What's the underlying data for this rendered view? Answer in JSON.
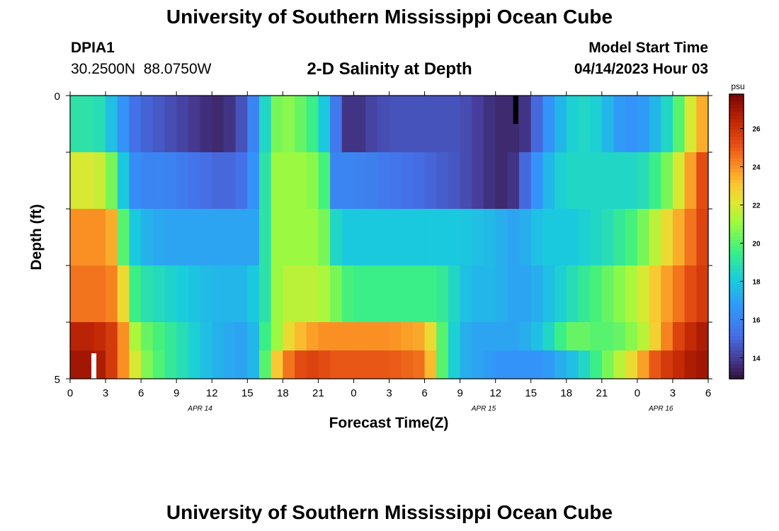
{
  "header": {
    "title": "University of Southern Mississippi Ocean Cube",
    "station_id": "DPIA1",
    "coords": "30.2500N  88.0750W",
    "model_start_label": "Model Start Time",
    "model_start_value": "04/14/2023 Hour 03"
  },
  "footer": {
    "title": "University of Southern Mississippi Ocean Cube"
  },
  "chart_data": {
    "type": "heatmap",
    "title": "2-D Salinity at Depth",
    "xlabel": "Forecast Time(Z)",
    "ylabel": "Depth (ft)",
    "colorbar_unit": "psu",
    "colorbar_ticks": [
      14,
      16,
      18,
      20,
      22,
      24,
      26
    ],
    "zlim": [
      12.9,
      27.8
    ],
    "x_tick_labels": [
      "0",
      "3",
      "6",
      "9",
      "12",
      "15",
      "18",
      "21",
      "0",
      "3",
      "6",
      "9",
      "12",
      "15",
      "18",
      "21",
      "0",
      "3",
      "6"
    ],
    "date_labels": [
      {
        "text": "APR 14",
        "x_hours": 11
      },
      {
        "text": "APR 15",
        "x_hours": 35
      },
      {
        "text": "APR 16",
        "x_hours": 50
      }
    ],
    "y_tick_labels": [
      "0",
      "5"
    ],
    "ylim": [
      0,
      5
    ],
    "x_range_hours": [
      0,
      54
    ],
    "rows": [
      {
        "depth_ft": 0.5,
        "times": [
          0,
          2,
          3,
          4,
          4.5,
          5,
          6,
          8,
          10,
          12,
          13,
          14,
          15,
          15.5,
          16,
          16.5,
          17,
          17.5,
          18,
          19,
          20,
          21,
          22,
          23,
          24,
          25,
          27,
          30,
          33,
          36,
          37,
          38,
          39,
          40,
          41,
          42,
          43,
          44,
          45,
          46,
          47,
          48,
          49,
          50,
          51,
          51.5,
          52,
          53,
          54
        ],
        "values": [
          19,
          19,
          18.5,
          17,
          16.5,
          15.5,
          15,
          14.5,
          14,
          13.5,
          13.5,
          14,
          15,
          16,
          17,
          18.5,
          20,
          20.5,
          21,
          20.5,
          20,
          19,
          17,
          14,
          13.5,
          14,
          14.5,
          14.5,
          14.5,
          13.5,
          13.5,
          13.5,
          14,
          16,
          17,
          18,
          18.5,
          18.5,
          18,
          17,
          16.5,
          16.5,
          17,
          18,
          19,
          20,
          21,
          23,
          24
        ]
      },
      {
        "depth_ft": 1.5,
        "times": [
          0,
          2,
          3,
          3.5,
          4,
          4.5,
          5,
          6,
          8,
          10,
          12,
          13,
          14,
          15,
          15.5,
          16,
          16.5,
          17,
          17.5,
          18,
          20,
          21,
          22,
          22.5,
          23,
          24,
          27,
          30,
          33,
          36,
          37,
          38,
          39,
          40,
          41,
          42,
          43,
          44,
          45,
          46,
          47,
          48,
          49,
          50,
          51,
          52,
          53,
          54
        ],
        "values": [
          22,
          22,
          21.5,
          20.5,
          19,
          18,
          16.5,
          16,
          16,
          15.5,
          15,
          15,
          15,
          15.5,
          16.5,
          18,
          19,
          20,
          21,
          21,
          21,
          20.5,
          19,
          16,
          16,
          16,
          15.5,
          15,
          14.5,
          13.5,
          13.5,
          14,
          16,
          17,
          18,
          18.5,
          18.5,
          18.5,
          18.5,
          18.5,
          18.5,
          18.5,
          19,
          20,
          21,
          23,
          24.5,
          26
        ]
      },
      {
        "depth_ft": 2.5,
        "times": [
          0,
          2,
          3,
          3.5,
          4,
          4.5,
          5,
          6,
          8,
          10,
          12,
          14,
          15,
          15.5,
          16,
          16.5,
          17,
          17.5,
          18,
          20,
          21,
          22,
          22.5,
          23,
          24,
          27,
          30,
          33,
          36,
          37,
          38,
          39,
          40,
          41,
          42,
          43,
          44,
          45,
          46,
          47,
          48,
          49,
          50,
          51,
          52,
          53,
          54
        ],
        "values": [
          24,
          24,
          24,
          23.5,
          22,
          20,
          18.5,
          17.5,
          17,
          17,
          17,
          17,
          17,
          17,
          18,
          19,
          20,
          21,
          21,
          21,
          21,
          20,
          18.5,
          18,
          18,
          18,
          18,
          18,
          17.5,
          17,
          17,
          17.5,
          18,
          18,
          18,
          18,
          18.5,
          18.5,
          19,
          19.5,
          20,
          21,
          22,
          23,
          24,
          25,
          26
        ]
      },
      {
        "depth_ft": 3.5,
        "times": [
          0,
          2,
          3,
          4,
          4.5,
          5,
          6,
          8,
          10,
          12,
          14,
          15,
          15.5,
          16,
          16.5,
          17,
          17.5,
          18,
          20,
          21,
          22,
          23,
          24,
          27,
          30,
          31,
          32,
          33,
          34,
          36,
          37,
          38,
          39,
          40,
          41,
          42,
          43,
          44,
          45,
          46,
          47,
          48,
          49,
          50,
          51,
          52,
          53,
          54
        ],
        "values": [
          24.5,
          24.5,
          24.5,
          24,
          22.5,
          20,
          19,
          18.5,
          18,
          17.5,
          17.5,
          17.5,
          18,
          18.5,
          19,
          20,
          21,
          21.5,
          21.5,
          21.5,
          21,
          20,
          19.5,
          19.5,
          19.5,
          19.5,
          19,
          18,
          17.5,
          17.5,
          17,
          17,
          17,
          17.5,
          18,
          18.5,
          19,
          19.5,
          20,
          20.5,
          21,
          21.5,
          22.5,
          23.5,
          24,
          25,
          25.5,
          26
        ]
      },
      {
        "depth_ft": 4.5,
        "times": [
          0,
          2,
          3,
          4,
          4.5,
          5,
          6,
          8,
          10,
          12,
          14,
          15,
          15.5,
          16,
          16.5,
          17,
          17.5,
          18,
          19,
          20,
          21,
          23,
          24,
          27,
          30,
          30.5,
          31,
          32,
          33,
          34,
          36,
          37,
          38,
          39,
          40,
          41,
          42,
          43,
          44,
          45,
          46,
          47,
          48,
          49,
          50,
          51,
          52,
          53,
          54
        ],
        "values": [
          26.5,
          26.5,
          26,
          25.5,
          24,
          22,
          20.5,
          19.5,
          18.5,
          17.5,
          17,
          17,
          17.5,
          18.5,
          19.5,
          20.5,
          21,
          22,
          23,
          23.5,
          24,
          24,
          24,
          24,
          23.5,
          22.5,
          21,
          19,
          17.5,
          17,
          17,
          17,
          17,
          17.5,
          18,
          19,
          20,
          20.5,
          20,
          20,
          20,
          20.5,
          21,
          22,
          23.5,
          25,
          26,
          26.5,
          27
        ]
      },
      {
        "depth_ft": 5.0,
        "times": [
          0,
          1,
          2,
          3,
          4,
          5,
          6,
          8,
          10,
          12,
          14,
          15,
          15.5,
          16,
          16.5,
          17,
          17.5,
          18,
          19,
          20,
          21,
          22,
          24,
          27,
          30,
          31,
          31.5,
          32,
          33,
          34,
          35,
          36,
          37,
          38,
          39,
          40,
          41,
          42,
          43,
          44,
          45,
          46,
          47,
          48,
          49,
          50,
          51,
          52,
          53,
          54
        ],
        "values": [
          27,
          27,
          27,
          26.5,
          25,
          23,
          21,
          19.5,
          18.5,
          17.5,
          17,
          17,
          17.5,
          18.5,
          20,
          21.5,
          23,
          24,
          25,
          25.5,
          25.5,
          25,
          25,
          25,
          24.5,
          22,
          20,
          19,
          17.5,
          17,
          17,
          16.5,
          16.5,
          16.5,
          16.5,
          16.5,
          17,
          17.5,
          18,
          19,
          20,
          21,
          22,
          23,
          24.5,
          25.5,
          26,
          26.5,
          27,
          27
        ]
      }
    ]
  },
  "colors": {
    "missing_white": "#ffffff",
    "missing_black": "#000000"
  }
}
